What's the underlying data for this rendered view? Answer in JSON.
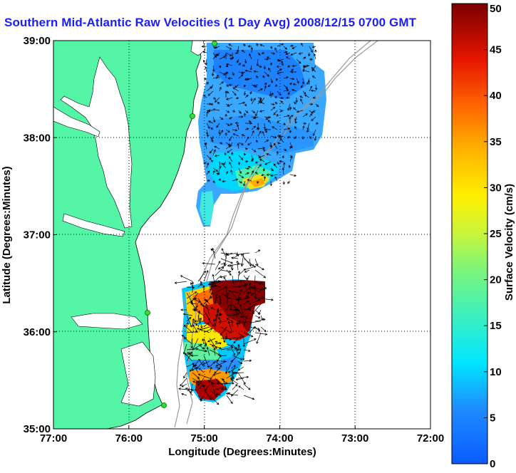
{
  "map": {
    "title": "Southern Mid-Atlantic Raw Velocities (1 Day Avg) 2008/12/15 0700 GMT",
    "title_color": "#1c1cff",
    "land_color": "#55f5a8",
    "xlabel": "Longitude (Degrees:Minutes)",
    "ylabel": "Latitude (Degrees:Minutes)",
    "x_ticks": [
      "77:00",
      "76:00",
      "75:00",
      "74:00",
      "73:00",
      "72:00"
    ],
    "y_ticks": [
      "39:00",
      "38:00",
      "37:00",
      "36:00",
      "35:00"
    ],
    "lon_range": [
      -77,
      -72
    ],
    "lat_range": [
      35,
      39
    ],
    "grid": true,
    "colorbar": {
      "label": "Surface Velocity (cm/s)",
      "range": [
        0,
        50
      ],
      "ticks": [
        "0",
        "5",
        "10",
        "15",
        "20",
        "25",
        "30",
        "35",
        "40",
        "45",
        "50"
      ],
      "colormap": "jet"
    }
  }
}
